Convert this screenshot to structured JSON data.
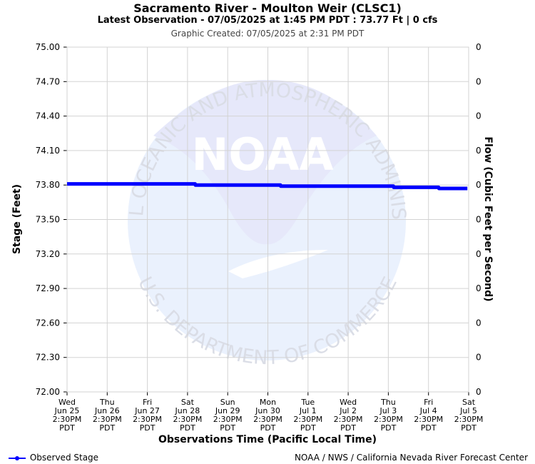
{
  "header": {
    "title": "Sacramento River - Moulton Weir (CLSC1)",
    "subtitle": "Latest Observation - 07/05/2025 at 1:45 PM PDT : 73.77 Ft | 0 cfs",
    "created": "Graphic Created: 07/05/2025 at 2:31 PM PDT"
  },
  "watermark": {
    "logo_text": "NOAA",
    "ring_text": "NATIONAL OCEANIC AND ATMOSPHERIC ADMINISTRATION",
    "ring_text_bottom": "U.S. DEPARTMENT OF COMMERCE"
  },
  "footer": {
    "legend_label": "Observed Stage",
    "credit": "NOAA / NWS / California Nevada River Forecast Center"
  },
  "colors": {
    "series": "#0000ff",
    "grid": "#d3d3d3",
    "watermark": "#e6ecfb"
  },
  "chart_data": {
    "type": "line",
    "xlabel": "Observations Time (Pacific Local Time)",
    "ylabel": "Stage (Feet)",
    "y2label": "Flow (Cubic Feet per Second)",
    "ylim": [
      72.0,
      75.0
    ],
    "yticks": [
      "75.00",
      "74.70",
      "74.40",
      "74.10",
      "73.80",
      "73.50",
      "73.20",
      "72.90",
      "72.60",
      "72.30",
      "72.00"
    ],
    "y2ticks": [
      "0",
      "0",
      "0",
      "0",
      "0",
      "0",
      "0",
      "0",
      "0",
      "0",
      "0"
    ],
    "xlim": [
      "2025-06-25 14:30",
      "2025-07-05 14:30"
    ],
    "xticks": [
      [
        "Wed",
        "Jun 25",
        "2:30PM",
        "PDT"
      ],
      [
        "Thu",
        "Jun 26",
        "2:30PM",
        "PDT"
      ],
      [
        "Fri",
        "Jun 27",
        "2:30PM",
        "PDT"
      ],
      [
        "Sat",
        "Jun 28",
        "2:30PM",
        "PDT"
      ],
      [
        "Sun",
        "Jun 29",
        "2:30PM",
        "PDT"
      ],
      [
        "Mon",
        "Jun 30",
        "2:30PM",
        "PDT"
      ],
      [
        "Tue",
        "Jul 1",
        "2:30PM",
        "PDT"
      ],
      [
        "Wed",
        "Jul 2",
        "2:30PM",
        "PDT"
      ],
      [
        "Thu",
        "Jul 3",
        "2:30PM",
        "PDT"
      ],
      [
        "Fri",
        "Jul 4",
        "2:30PM",
        "PDT"
      ],
      [
        "Sat",
        "Jul 5",
        "2:30PM",
        "PDT"
      ]
    ],
    "grid": true,
    "legend_position": "bottom-left",
    "series": [
      {
        "name": "Observed Stage",
        "points": [
          [
            "2025-06-25 14:30",
            73.81
          ],
          [
            "2025-06-28 19:00",
            73.81
          ],
          [
            "2025-06-28 19:15",
            73.8
          ],
          [
            "2025-06-30 22:00",
            73.8
          ],
          [
            "2025-06-30 22:15",
            73.79
          ],
          [
            "2025-07-03 17:30",
            73.79
          ],
          [
            "2025-07-03 17:45",
            73.78
          ],
          [
            "2025-07-04 20:30",
            73.78
          ],
          [
            "2025-07-04 20:45",
            73.77
          ],
          [
            "2025-07-05 13:45",
            73.77
          ]
        ]
      }
    ]
  }
}
